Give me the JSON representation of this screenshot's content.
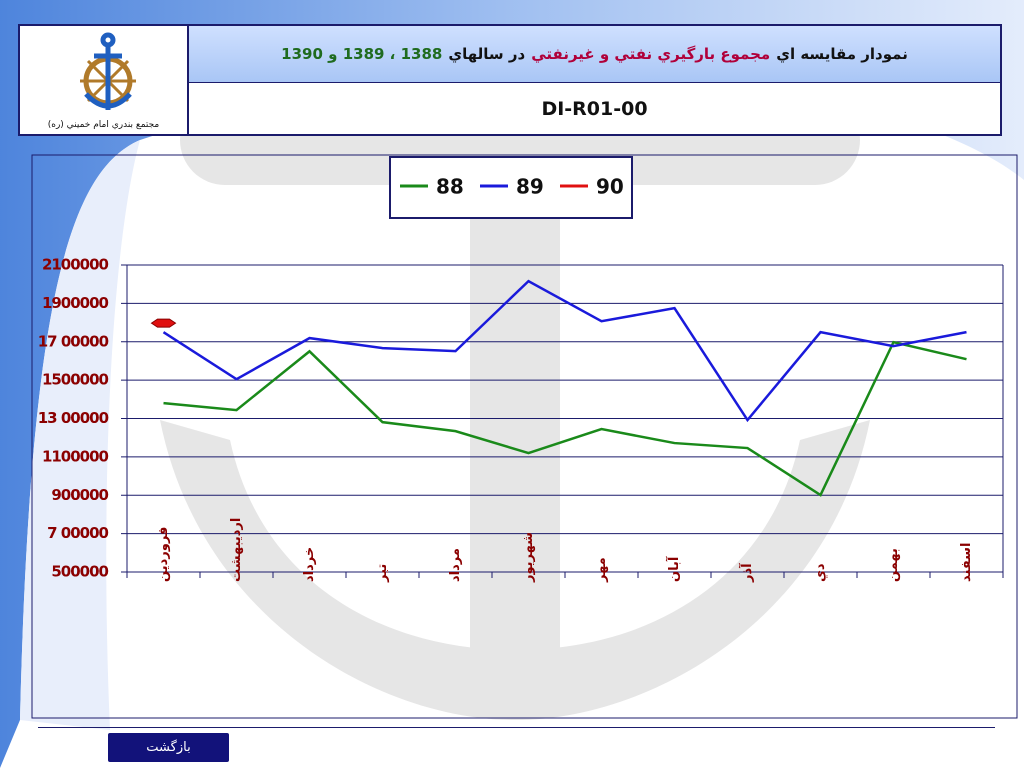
{
  "header": {
    "title_parts": [
      {
        "text": "نمودار مقايسه اي",
        "color": "#111111"
      },
      {
        "text": "مجموع بارگيري نفتي و غيرنفتي",
        "color": "#b0003a"
      },
      {
        "text": "در سالهاي",
        "color": "#111111"
      },
      {
        "text": "1388 ، 1389 و 1390",
        "color": "#1f6b1f"
      }
    ],
    "code": "DI-R01-00",
    "logo_caption": "مجتمع بندري امام خميني (ره)"
  },
  "chart_data": {
    "type": "line",
    "categories": [
      "فروردين",
      "ارديبهشت",
      "خرداد",
      "تير",
      "مرداد",
      "شهريور",
      "مهر",
      "آبان",
      "آذر",
      "دي",
      "بهمن",
      "اسفند"
    ],
    "series": [
      {
        "name": "88",
        "color": "#1a8a1a",
        "values": [
          1380000,
          1344000,
          1650000,
          1281000,
          1234000,
          1120000,
          1245000,
          1172000,
          1146000,
          901000,
          1698000,
          1609000
        ]
      },
      {
        "name": "89",
        "color": "#1a1adb",
        "values": [
          1750000,
          1505000,
          1719000,
          1667000,
          1651000,
          2016000,
          1807000,
          1875000,
          1292000,
          1750000,
          1677000,
          1750000
        ]
      },
      {
        "name": "90",
        "color": "#e01010",
        "values": [
          1797000,
          null,
          null,
          null,
          null,
          null,
          null,
          null,
          null,
          null,
          null,
          null
        ]
      }
    ],
    "ylim": [
      500000,
      2100000
    ],
    "yticks": [
      500000,
      {
        "value": 700000,
        "label": "7 00000"
      },
      900000,
      1100000,
      {
        "value": 1300000,
        "label": "13 00000"
      },
      1500000,
      {
        "value": 1700000,
        "label": "17 00000"
      },
      1900000,
      2100000
    ],
    "grid": true,
    "legend": "top"
  },
  "nav": {
    "back": "بازگشت"
  }
}
